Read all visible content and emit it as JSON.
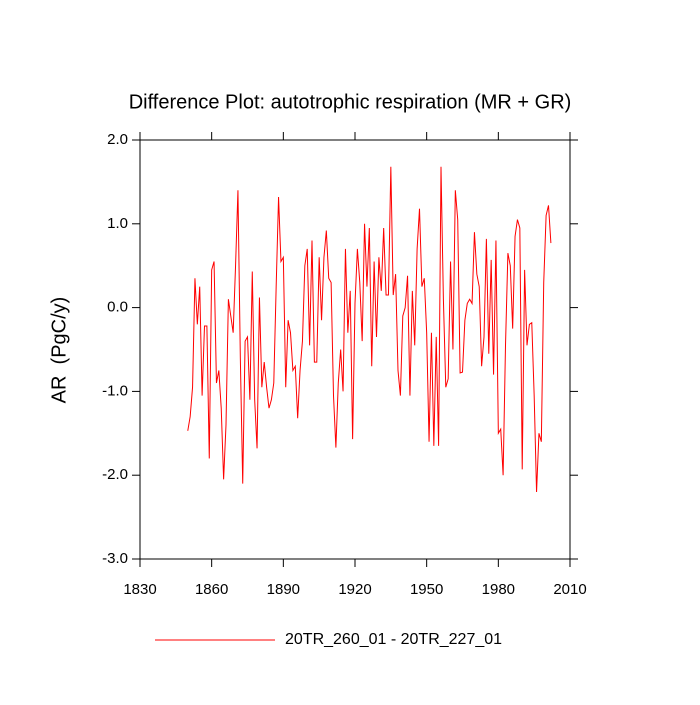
{
  "chart_data": {
    "type": "line",
    "title": "Difference Plot: autotrophic respiration (MR + GR)",
    "y_label": "AR  (PgC/y)",
    "x": [
      1850,
      1851,
      1852,
      1853,
      1854,
      1855,
      1856,
      1857,
      1858,
      1859,
      1860,
      1861,
      1862,
      1863,
      1864,
      1865,
      1866,
      1867,
      1868,
      1869,
      1870,
      1871,
      1872,
      1873,
      1874,
      1875,
      1876,
      1877,
      1878,
      1879,
      1880,
      1881,
      1882,
      1883,
      1884,
      1885,
      1886,
      1887,
      1888,
      1889,
      1890,
      1891,
      1892,
      1893,
      1894,
      1895,
      1896,
      1897,
      1898,
      1899,
      1900,
      1901,
      1902,
      1903,
      1904,
      1905,
      1906,
      1907,
      1908,
      1909,
      1910,
      1911,
      1912,
      1913,
      1914,
      1915,
      1916,
      1917,
      1918,
      1919,
      1920,
      1921,
      1922,
      1923,
      1924,
      1925,
      1926,
      1927,
      1928,
      1929,
      1930,
      1931,
      1932,
      1933,
      1934,
      1935,
      1936,
      1937,
      1938,
      1939,
      1940,
      1941,
      1942,
      1943,
      1944,
      1945,
      1946,
      1947,
      1948,
      1949,
      1950,
      1951,
      1952,
      1953,
      1954,
      1955,
      1956,
      1957,
      1958,
      1959,
      1960,
      1961,
      1962,
      1963,
      1964,
      1965,
      1966,
      1967,
      1968,
      1969,
      1970,
      1971,
      1972,
      1973,
      1974,
      1975,
      1976,
      1977,
      1978,
      1979,
      1980,
      1981,
      1982,
      1983,
      1984,
      1985,
      1986,
      1987,
      1988,
      1989,
      1990,
      1991,
      1992,
      1993,
      1994,
      1995,
      1996,
      1997,
      1998,
      1999,
      2000,
      2001,
      2002
    ],
    "series": [
      {
        "name": "20TR_260_01 - 20TR_227_01",
        "color": "#ff0000",
        "values": [
          -1.47,
          -1.3,
          -0.95,
          0.35,
          -0.2,
          0.25,
          -1.05,
          -0.22,
          -0.22,
          -1.8,
          0.45,
          0.55,
          -0.9,
          -0.75,
          -1.2,
          -2.05,
          -1.4,
          0.1,
          -0.1,
          -0.3,
          0.5,
          1.4,
          -0.6,
          -2.1,
          -0.4,
          -0.35,
          -1.1,
          0.43,
          -1.1,
          -1.68,
          0.12,
          -0.95,
          -0.65,
          -0.95,
          -1.2,
          -1.1,
          -0.9,
          0.25,
          1.32,
          0.55,
          0.6,
          -0.95,
          -0.15,
          -0.3,
          -0.75,
          -0.7,
          -1.32,
          -0.75,
          -0.4,
          0.5,
          0.7,
          -0.45,
          0.8,
          -0.65,
          -0.65,
          0.6,
          -0.15,
          0.6,
          0.92,
          0.35,
          0.3,
          -1.05,
          -1.67,
          -0.9,
          -0.5,
          -1.0,
          0.7,
          -0.3,
          0.2,
          -1.57,
          0.05,
          0.7,
          0.3,
          -0.4,
          1.0,
          0.25,
          0.95,
          -0.7,
          0.55,
          -0.35,
          0.6,
          0.2,
          0.95,
          0.15,
          0.15,
          1.68,
          0.15,
          0.4,
          -0.75,
          -1.05,
          -0.1,
          0.0,
          0.38,
          -1.05,
          0.2,
          -0.45,
          0.7,
          1.18,
          0.25,
          0.35,
          -0.3,
          -1.6,
          -0.3,
          -1.65,
          -0.35,
          -1.65,
          1.68,
          0.1,
          -0.95,
          -0.85,
          0.55,
          -0.5,
          1.4,
          1.05,
          -0.78,
          -0.77,
          -0.15,
          0.05,
          0.1,
          0.05,
          0.9,
          0.4,
          0.25,
          -0.7,
          -0.35,
          0.82,
          -0.55,
          0.57,
          -0.8,
          0.8,
          -1.5,
          -1.45,
          -2.0,
          -0.45,
          0.65,
          0.5,
          -0.25,
          0.85,
          1.05,
          0.95,
          -1.93,
          0.45,
          -0.45,
          -0.2,
          -0.18,
          -1.05,
          -2.2,
          -1.5,
          -1.6,
          0.3,
          1.1,
          1.22,
          0.77
        ]
      }
    ],
    "xlim": [
      1830,
      2010
    ],
    "xticks": [
      1830,
      1860,
      1890,
      1920,
      1950,
      1980,
      2010
    ],
    "ylim": [
      -3,
      2
    ],
    "yticks": [
      {
        "value": -3,
        "label": "-3.0"
      },
      {
        "value": -2,
        "label": "-2.0"
      },
      {
        "value": -1,
        "label": "-1.0"
      },
      {
        "value": 0,
        "label": "0.0"
      },
      {
        "value": 1,
        "label": "1.0"
      },
      {
        "value": 2,
        "label": "2.0"
      }
    ]
  }
}
